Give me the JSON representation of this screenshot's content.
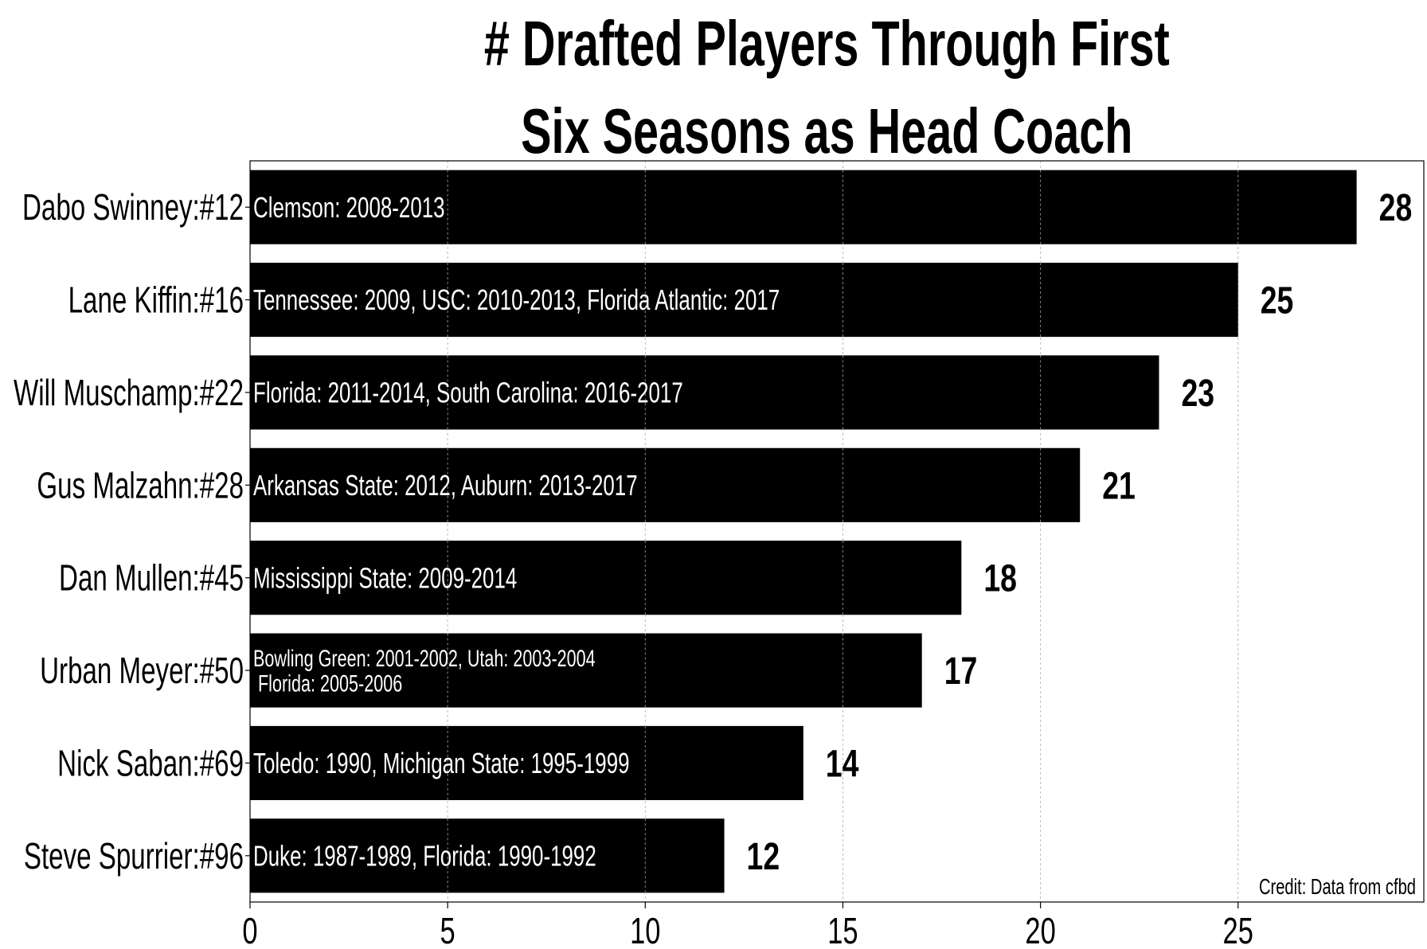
{
  "chart_data": {
    "type": "bar",
    "orientation": "horizontal",
    "title": "# Drafted Players Through First Six Seasons as Head Coach",
    "title_lines": [
      "# Drafted Players Through First",
      "Six Seasons as Head Coach"
    ],
    "categories": [
      "Dabo Swinney:#12",
      "Lane Kiffin:#16",
      "Will Muschamp:#22",
      "Gus Malzahn:#28",
      "Dan Mullen:#45",
      "Urban Meyer:#50",
      "Nick Saban:#69",
      "Steve Spurrier:#96"
    ],
    "values": [
      28,
      25,
      23,
      21,
      18,
      17,
      14,
      12
    ],
    "bar_annotations": [
      [
        "Clemson: 2008-2013"
      ],
      [
        "Tennessee: 2009, USC: 2010-2013, Florida Atlantic: 2017"
      ],
      [
        "Florida: 2011-2014, South Carolina: 2016-2017"
      ],
      [
        "Arkansas State: 2012, Auburn: 2013-2017"
      ],
      [
        "Mississippi State: 2009-2014"
      ],
      [
        "Bowling Green: 2001-2002, Utah: 2003-2004",
        " Florida: 2005-2006"
      ],
      [
        "Toledo: 1990, Michigan State: 1995-1999"
      ],
      [
        "Duke: 1987-1989, Florida: 1990-1992"
      ]
    ],
    "value_labels": [
      "28",
      "25",
      "23",
      "21",
      "18",
      "17",
      "14",
      "12"
    ],
    "xticks": [
      0,
      5,
      10,
      15,
      20,
      25
    ],
    "xtick_labels": [
      "0",
      "5",
      "10",
      "15",
      "20",
      "25"
    ],
    "xlim": [
      0,
      29.7
    ],
    "xlabel": "",
    "ylabel": "",
    "grid": "x-dashed",
    "credit": "Credit: Data from cfbd",
    "colors": {
      "bar": "#000000",
      "bar_text": "#ffffff",
      "grid": "#bbbbbb",
      "background": "#ffffff"
    }
  }
}
